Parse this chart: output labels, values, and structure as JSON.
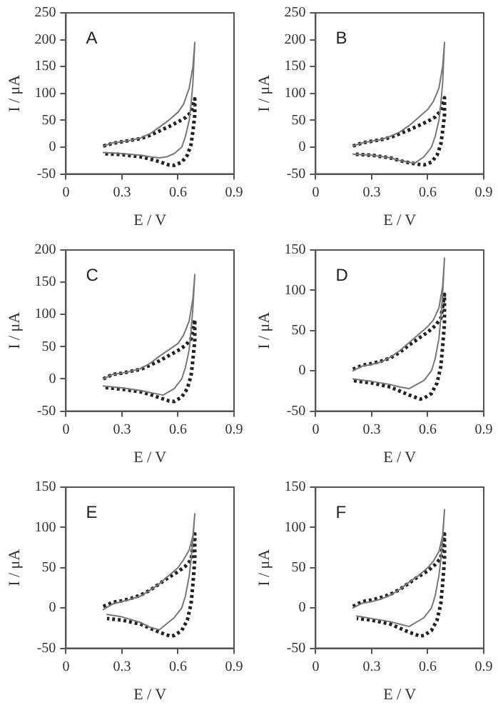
{
  "chart_data": [
    {
      "type": "line",
      "annotations": [
        "A"
      ],
      "xlabel": "E / V",
      "ylabel": "I / μA",
      "xlim": [
        0,
        0.9
      ],
      "xticks": [
        0,
        0.3,
        0.6,
        0.9
      ],
      "ylim": [
        -50,
        250
      ],
      "yticks": [
        -50,
        0,
        50,
        100,
        150,
        200,
        250
      ],
      "grid": false,
      "legend": false,
      "marker": "none",
      "series": [
        {
          "color": "#777777",
          "line_style": "solid",
          "x": [
            0.2,
            0.25,
            0.3,
            0.35,
            0.4,
            0.45,
            0.5,
            0.55,
            0.6,
            0.63,
            0.66,
            0.68,
            0.69,
            0.68,
            0.67,
            0.66,
            0.64,
            0.62,
            0.58,
            0.54,
            0.5,
            0.45,
            0.4,
            0.3,
            0.2
          ],
          "values": [
            2,
            8,
            10,
            13,
            17,
            25,
            37,
            50,
            65,
            80,
            110,
            150,
            195,
            120,
            80,
            50,
            20,
            0,
            -12,
            -18,
            -20,
            -18,
            -15,
            -12,
            -10
          ]
        },
        {
          "color": "#222222",
          "line_style": "dotted",
          "x": [
            0.2,
            0.25,
            0.3,
            0.35,
            0.4,
            0.45,
            0.5,
            0.55,
            0.6,
            0.64,
            0.67,
            0.69,
            0.69,
            0.68,
            0.67,
            0.65,
            0.62,
            0.58,
            0.55,
            0.5,
            0.45,
            0.4,
            0.3,
            0.2
          ],
          "values": [
            2,
            7,
            10,
            13,
            16,
            22,
            30,
            38,
            47,
            55,
            65,
            90,
            60,
            30,
            5,
            -15,
            -28,
            -34,
            -33,
            -27,
            -22,
            -18,
            -14,
            -12
          ]
        }
      ]
    },
    {
      "type": "line",
      "annotations": [
        "B"
      ],
      "xlabel": "E / V",
      "ylabel": "I / μA",
      "xlim": [
        0,
        0.9
      ],
      "xticks": [
        0,
        0.3,
        0.6,
        0.9
      ],
      "ylim": [
        -50,
        250
      ],
      "yticks": [
        -50,
        0,
        50,
        100,
        150,
        200,
        250
      ],
      "grid": false,
      "legend": false,
      "marker": "none",
      "series": [
        {
          "color": "#777777",
          "line_style": "solid",
          "x": [
            0.2,
            0.25,
            0.3,
            0.35,
            0.4,
            0.45,
            0.5,
            0.55,
            0.6,
            0.63,
            0.66,
            0.68,
            0.69,
            0.68,
            0.67,
            0.66,
            0.64,
            0.62,
            0.58,
            0.53,
            0.5,
            0.45,
            0.4,
            0.3,
            0.2
          ],
          "values": [
            2,
            8,
            11,
            14,
            20,
            28,
            40,
            55,
            70,
            85,
            110,
            150,
            195,
            120,
            80,
            50,
            20,
            0,
            -18,
            -30,
            -28,
            -25,
            -20,
            -15,
            -13
          ]
        },
        {
          "color": "#222222",
          "line_style": "dotted",
          "x": [
            0.2,
            0.25,
            0.3,
            0.35,
            0.4,
            0.45,
            0.5,
            0.55,
            0.6,
            0.64,
            0.67,
            0.69,
            0.69,
            0.68,
            0.67,
            0.65,
            0.62,
            0.58,
            0.55,
            0.5,
            0.45,
            0.4,
            0.3,
            0.2
          ],
          "values": [
            2,
            8,
            11,
            14,
            18,
            25,
            32,
            40,
            48,
            56,
            68,
            92,
            60,
            30,
            5,
            -15,
            -28,
            -33,
            -32,
            -29,
            -25,
            -20,
            -15,
            -13
          ]
        }
      ]
    },
    {
      "type": "line",
      "annotations": [
        "C"
      ],
      "xlabel": "E / V",
      "ylabel": "I / μA",
      "xlim": [
        0,
        0.9
      ],
      "xticks": [
        0,
        0.3,
        0.6,
        0.9
      ],
      "ylim": [
        -50,
        200
      ],
      "yticks": [
        -50,
        0,
        50,
        100,
        150,
        200
      ],
      "grid": false,
      "legend": false,
      "marker": "none",
      "series": [
        {
          "color": "#777777",
          "line_style": "solid",
          "x": [
            0.2,
            0.25,
            0.3,
            0.35,
            0.4,
            0.45,
            0.5,
            0.55,
            0.6,
            0.63,
            0.66,
            0.68,
            0.69,
            0.68,
            0.67,
            0.66,
            0.64,
            0.62,
            0.58,
            0.52,
            0.5,
            0.45,
            0.4,
            0.3,
            0.2
          ],
          "values": [
            0,
            7,
            9,
            12,
            16,
            24,
            35,
            45,
            55,
            68,
            90,
            125,
            162,
            110,
            75,
            45,
            18,
            0,
            -15,
            -25,
            -24,
            -21,
            -18,
            -14,
            -11
          ]
        },
        {
          "color": "#222222",
          "line_style": "dotted",
          "x": [
            0.2,
            0.25,
            0.3,
            0.35,
            0.4,
            0.45,
            0.5,
            0.55,
            0.6,
            0.64,
            0.67,
            0.69,
            0.69,
            0.68,
            0.67,
            0.65,
            0.62,
            0.58,
            0.55,
            0.5,
            0.45,
            0.4,
            0.3,
            0.2
          ],
          "values": [
            0,
            7,
            9,
            12,
            15,
            21,
            28,
            36,
            44,
            52,
            62,
            92,
            60,
            30,
            5,
            -15,
            -28,
            -35,
            -34,
            -29,
            -24,
            -20,
            -16,
            -13
          ]
        }
      ]
    },
    {
      "type": "line",
      "annotations": [
        "D"
      ],
      "xlabel": "E / V",
      "ylabel": "I / μA",
      "xlim": [
        0,
        0.9
      ],
      "xticks": [
        0,
        0.3,
        0.6,
        0.9
      ],
      "ylim": [
        -50,
        150
      ],
      "yticks": [
        -50,
        0,
        50,
        100,
        150
      ],
      "grid": false,
      "legend": false,
      "marker": "none",
      "series": [
        {
          "color": "#777777",
          "line_style": "solid",
          "x": [
            0.2,
            0.25,
            0.3,
            0.35,
            0.4,
            0.45,
            0.5,
            0.55,
            0.6,
            0.63,
            0.66,
            0.68,
            0.69,
            0.68,
            0.67,
            0.66,
            0.64,
            0.62,
            0.58,
            0.5,
            0.45,
            0.4,
            0.3,
            0.2
          ],
          "values": [
            0,
            6,
            8,
            11,
            17,
            25,
            35,
            45,
            55,
            63,
            78,
            105,
            140,
            95,
            65,
            40,
            15,
            0,
            -12,
            -22,
            -20,
            -17,
            -13,
            -10
          ]
        },
        {
          "color": "#222222",
          "line_style": "dotted",
          "x": [
            0.2,
            0.25,
            0.3,
            0.35,
            0.4,
            0.45,
            0.5,
            0.55,
            0.6,
            0.64,
            0.67,
            0.69,
            0.69,
            0.68,
            0.67,
            0.65,
            0.62,
            0.58,
            0.56,
            0.5,
            0.45,
            0.4,
            0.3,
            0.2
          ],
          "values": [
            2,
            7,
            9,
            12,
            16,
            23,
            32,
            40,
            48,
            56,
            65,
            95,
            60,
            30,
            5,
            -15,
            -28,
            -34,
            -35,
            -30,
            -25,
            -20,
            -15,
            -12
          ]
        }
      ]
    },
    {
      "type": "line",
      "annotations": [
        "E"
      ],
      "xlabel": "E / V",
      "ylabel": "I / μA",
      "xlim": [
        0,
        0.9
      ],
      "xticks": [
        0,
        0.3,
        0.6,
        0.9
      ],
      "ylim": [
        -50,
        150
      ],
      "yticks": [
        -50,
        0,
        50,
        100,
        150
      ],
      "grid": false,
      "legend": false,
      "marker": "none",
      "series": [
        {
          "color": "#777777",
          "line_style": "solid",
          "x": [
            0.2,
            0.25,
            0.3,
            0.35,
            0.4,
            0.45,
            0.5,
            0.55,
            0.6,
            0.63,
            0.66,
            0.68,
            0.69,
            0.68,
            0.67,
            0.66,
            0.64,
            0.62,
            0.58,
            0.5,
            0.45,
            0.4,
            0.3,
            0.22
          ],
          "values": [
            -2,
            5,
            8,
            11,
            15,
            22,
            30,
            40,
            50,
            60,
            72,
            90,
            117,
            85,
            60,
            40,
            15,
            0,
            -12,
            -27,
            -24,
            -18,
            -11,
            -8
          ]
        },
        {
          "color": "#222222",
          "line_style": "dotted",
          "x": [
            0.2,
            0.25,
            0.3,
            0.35,
            0.4,
            0.45,
            0.5,
            0.55,
            0.6,
            0.64,
            0.67,
            0.69,
            0.69,
            0.68,
            0.67,
            0.65,
            0.62,
            0.58,
            0.56,
            0.5,
            0.45,
            0.4,
            0.3,
            0.22
          ],
          "values": [
            2,
            7,
            9,
            12,
            16,
            22,
            30,
            38,
            45,
            52,
            60,
            92,
            60,
            30,
            5,
            -15,
            -28,
            -34,
            -35,
            -30,
            -25,
            -20,
            -15,
            -13
          ]
        }
      ]
    },
    {
      "type": "line",
      "annotations": [
        "F"
      ],
      "xlabel": "E / V",
      "ylabel": "I / μA",
      "xlim": [
        0,
        0.9
      ],
      "xticks": [
        0,
        0.3,
        0.6,
        0.9
      ],
      "ylim": [
        -50,
        150
      ],
      "yticks": [
        -50,
        0,
        50,
        100,
        150
      ],
      "grid": false,
      "legend": false,
      "marker": "none",
      "series": [
        {
          "color": "#777777",
          "line_style": "solid",
          "x": [
            0.2,
            0.25,
            0.3,
            0.35,
            0.4,
            0.45,
            0.5,
            0.55,
            0.6,
            0.63,
            0.66,
            0.68,
            0.69,
            0.68,
            0.67,
            0.66,
            0.64,
            0.62,
            0.58,
            0.5,
            0.45,
            0.4,
            0.3,
            0.22
          ],
          "values": [
            0,
            6,
            8,
            11,
            16,
            23,
            32,
            40,
            50,
            58,
            70,
            90,
            122,
            85,
            60,
            40,
            15,
            0,
            -12,
            -23,
            -20,
            -17,
            -13,
            -10
          ]
        },
        {
          "color": "#222222",
          "line_style": "dotted",
          "x": [
            0.2,
            0.25,
            0.3,
            0.35,
            0.4,
            0.45,
            0.5,
            0.55,
            0.6,
            0.64,
            0.67,
            0.69,
            0.69,
            0.68,
            0.67,
            0.65,
            0.62,
            0.58,
            0.56,
            0.5,
            0.45,
            0.4,
            0.3,
            0.22
          ],
          "values": [
            2,
            8,
            10,
            13,
            17,
            23,
            31,
            39,
            46,
            54,
            62,
            92,
            60,
            30,
            5,
            -15,
            -28,
            -34,
            -35,
            -30,
            -25,
            -20,
            -15,
            -13
          ]
        }
      ]
    }
  ]
}
